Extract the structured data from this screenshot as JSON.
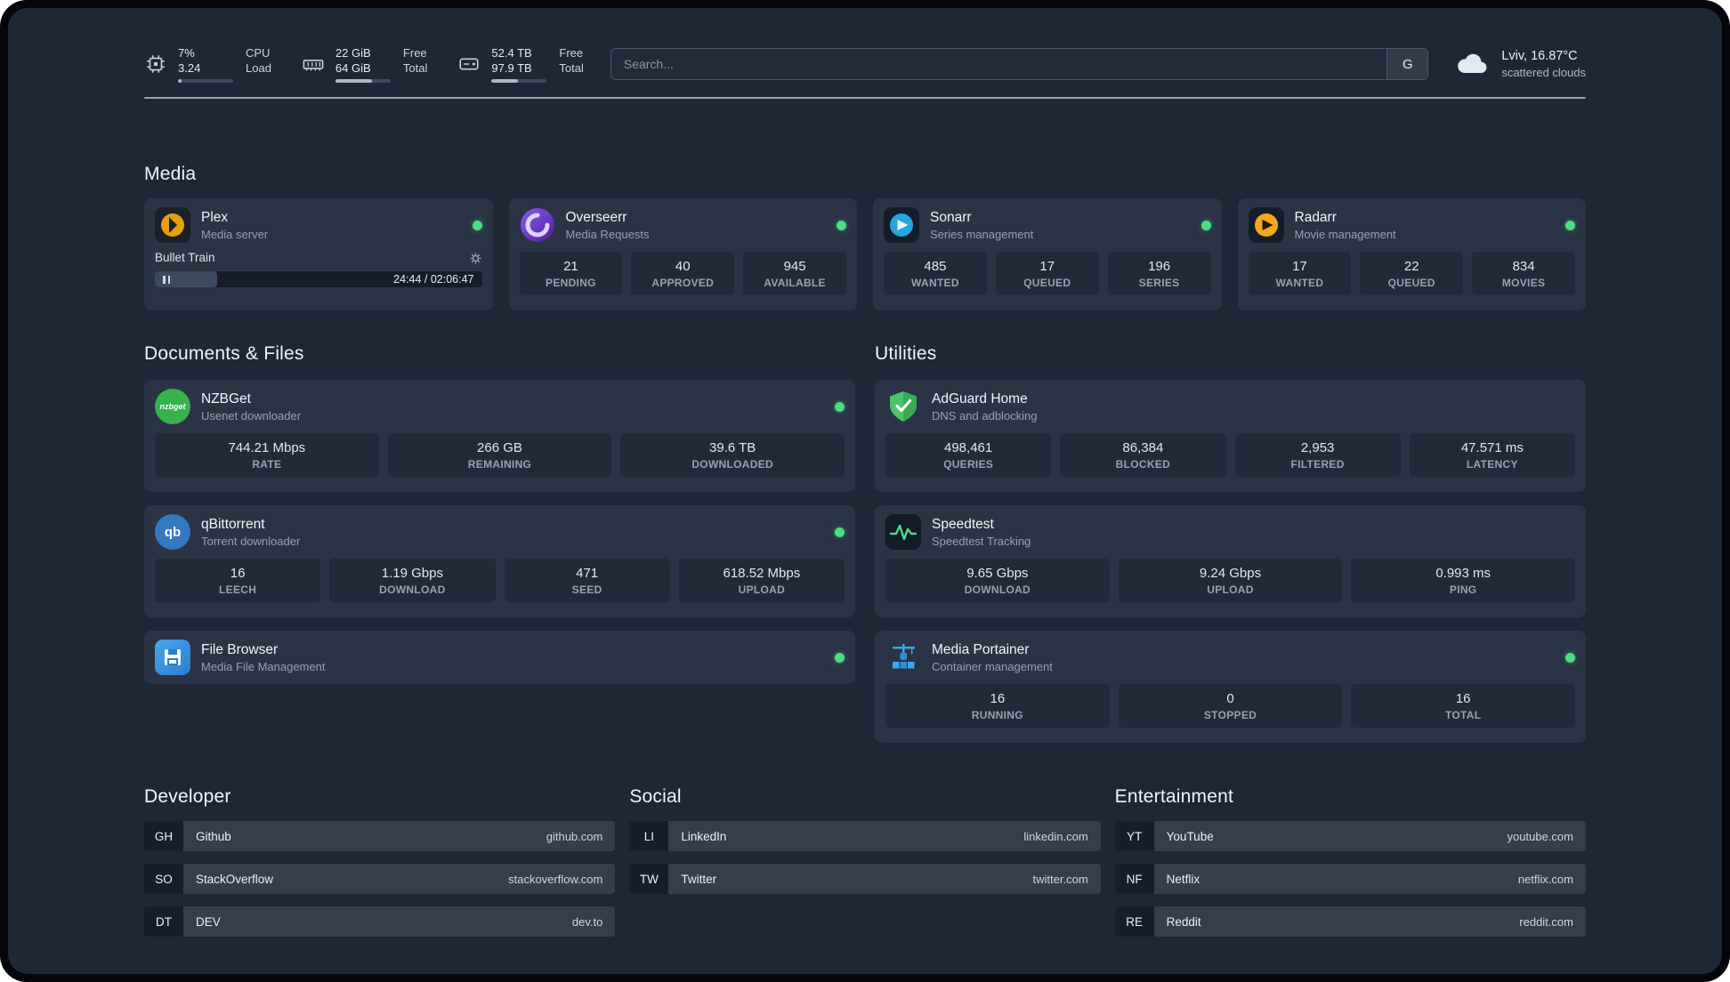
{
  "topbar": {
    "resources": [
      {
        "icon": "cpu-icon",
        "value_top": "7%",
        "value_bottom": "3.24",
        "label_top": "CPU",
        "label_bottom": "Load",
        "progress": 7
      },
      {
        "icon": "memory-icon",
        "value_top": "22 GiB",
        "value_bottom": "64 GiB",
        "label_top": "Free",
        "label_bottom": "Total",
        "progress": 66
      },
      {
        "icon": "disk-icon",
        "value_top": "52.4 TB",
        "value_bottom": "97.9 TB",
        "label_top": "Free",
        "label_bottom": "Total",
        "progress": 47
      }
    ],
    "search": {
      "placeholder": "Search...",
      "provider_label": "G"
    },
    "weather": {
      "location": "Lviv, 16.87°C",
      "condition": "scattered clouds"
    }
  },
  "sections": {
    "media": {
      "title": "Media",
      "cards": [
        {
          "name": "Plex",
          "desc": "Media server",
          "player": {
            "title": "Bullet Train",
            "time": "24:44 / 02:06:47",
            "progress": 19
          }
        },
        {
          "name": "Overseerr",
          "desc": "Media Requests",
          "stats": [
            {
              "value": "21",
              "label": "PENDING"
            },
            {
              "value": "40",
              "label": "APPROVED"
            },
            {
              "value": "945",
              "label": "AVAILABLE"
            }
          ]
        },
        {
          "name": "Sonarr",
          "desc": "Series management",
          "stats": [
            {
              "value": "485",
              "label": "WANTED"
            },
            {
              "value": "17",
              "label": "QUEUED"
            },
            {
              "value": "196",
              "label": "SERIES"
            }
          ]
        },
        {
          "name": "Radarr",
          "desc": "Movie management",
          "stats": [
            {
              "value": "17",
              "label": "WANTED"
            },
            {
              "value": "22",
              "label": "QUEUED"
            },
            {
              "value": "834",
              "label": "MOVIES"
            }
          ]
        }
      ]
    },
    "documents": {
      "title": "Documents & Files",
      "cards": [
        {
          "name": "NZBGet",
          "desc": "Usenet downloader",
          "icon_text": "nzbget",
          "stats": [
            {
              "value": "744.21 Mbps",
              "label": "RATE"
            },
            {
              "value": "266 GB",
              "label": "REMAINING"
            },
            {
              "value": "39.6 TB",
              "label": "DOWNLOADED"
            }
          ]
        },
        {
          "name": "qBittorrent",
          "desc": "Torrent downloader",
          "icon_text": "qb",
          "stats": [
            {
              "value": "16",
              "label": "LEECH"
            },
            {
              "value": "1.19 Gbps",
              "label": "DOWNLOAD"
            },
            {
              "value": "471",
              "label": "SEED"
            },
            {
              "value": "618.52 Mbps",
              "label": "UPLOAD"
            }
          ]
        },
        {
          "name": "File Browser",
          "desc": "Media File Management"
        }
      ]
    },
    "utilities": {
      "title": "Utilities",
      "cards": [
        {
          "name": "AdGuard Home",
          "desc": "DNS and adblocking",
          "stats": [
            {
              "value": "498,461",
              "label": "QUERIES"
            },
            {
              "value": "86,384",
              "label": "BLOCKED"
            },
            {
              "value": "2,953",
              "label": "FILTERED"
            },
            {
              "value": "47.571 ms",
              "label": "LATENCY"
            }
          ]
        },
        {
          "name": "Speedtest",
          "desc": "Speedtest Tracking",
          "stats": [
            {
              "value": "9.65 Gbps",
              "label": "DOWNLOAD"
            },
            {
              "value": "9.24 Gbps",
              "label": "UPLOAD"
            },
            {
              "value": "0.993 ms",
              "label": "PING"
            }
          ]
        },
        {
          "name": "Media Portainer",
          "desc": "Container management",
          "stats": [
            {
              "value": "16",
              "label": "RUNNING"
            },
            {
              "value": "0",
              "label": "STOPPED"
            },
            {
              "value": "16",
              "label": "TOTAL"
            }
          ]
        }
      ]
    }
  },
  "bookmarks": [
    {
      "title": "Developer",
      "items": [
        {
          "abbr": "GH",
          "name": "Github",
          "url": "github.com"
        },
        {
          "abbr": "SO",
          "name": "StackOverflow",
          "url": "stackoverflow.com"
        },
        {
          "abbr": "DT",
          "name": "DEV",
          "url": "dev.to"
        }
      ]
    },
    {
      "title": "Social",
      "items": [
        {
          "abbr": "LI",
          "name": "LinkedIn",
          "url": "linkedin.com"
        },
        {
          "abbr": "TW",
          "name": "Twitter",
          "url": "twitter.com"
        }
      ]
    },
    {
      "title": "Entertainment",
      "items": [
        {
          "abbr": "YT",
          "name": "YouTube",
          "url": "youtube.com"
        },
        {
          "abbr": "NF",
          "name": "Netflix",
          "url": "netflix.com"
        },
        {
          "abbr": "RE",
          "name": "Reddit",
          "url": "reddit.com"
        }
      ]
    }
  ]
}
